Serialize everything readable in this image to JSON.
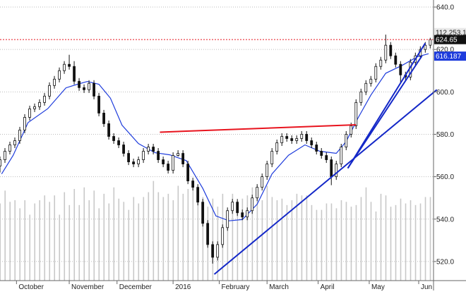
{
  "chart_data": {
    "type": "candlestick",
    "y_axis": {
      "ticks": [
        "640.0",
        "620.0",
        "600.0",
        "580.0",
        "560.0",
        "540.0",
        "520.0"
      ],
      "tick_values": [
        640,
        620,
        600,
        580,
        560,
        540,
        520
      ],
      "range": [
        511,
        642
      ],
      "position": "right",
      "grid": true
    },
    "x_axis": {
      "labels": [
        "October",
        "November",
        "December",
        "2016",
        "February",
        "March",
        "April",
        "May",
        "Jun"
      ],
      "label_dates": [
        "2015-10-01",
        "2015-11-02",
        "2015-12-01",
        "2016-01-04",
        "2016-02-01",
        "2016-03-01",
        "2016-04-01",
        "2016-05-02",
        "2016-06-01"
      ],
      "range": [
        "2015-09-21",
        "2016-06-10"
      ]
    },
    "value_tags": {
      "volume": {
        "text": "112,253,16",
        "color": "#e8e8e8",
        "text_color": "#222222"
      },
      "price": {
        "text": "624.65",
        "value": 624.65,
        "color": "#111111",
        "text_color": "#ffffff"
      },
      "moving_average": {
        "text": "616.187",
        "value": 616.187,
        "color": "#1e3cdc",
        "text_color": "#ffffff"
      }
    },
    "resistance_line_value": 624.65,
    "colors": {
      "candle": "#111111",
      "moving_average": "#1e3cdc",
      "trendline": "#1428c8",
      "resistance": "#e8141e",
      "volume": "#c8c8c8",
      "grid": "#bbbbbb"
    },
    "moving_average": {
      "dates": [
        "2015-09-22",
        "2015-09-29",
        "2015-10-08",
        "2015-10-20",
        "2015-10-31",
        "2015-11-07",
        "2015-11-13",
        "2015-11-20",
        "2015-11-27",
        "2015-12-04",
        "2015-12-14",
        "2015-12-24",
        "2016-01-02",
        "2016-01-12",
        "2016-01-22",
        "2016-01-30",
        "2016-02-07",
        "2016-02-15",
        "2016-02-24",
        "2016-03-04",
        "2016-03-14",
        "2016-03-24",
        "2016-04-02",
        "2016-04-12",
        "2016-04-18",
        "2016-04-25",
        "2016-05-03",
        "2016-05-12",
        "2016-05-22",
        "2016-05-31",
        "2016-06-07"
      ],
      "values": [
        561.3,
        570.1,
        585.5,
        592.1,
        601.9,
        603.6,
        604.9,
        603.6,
        597.0,
        584.3,
        575.6,
        571.3,
        570.3,
        567.6,
        554.5,
        541.5,
        539.2,
        539.8,
        547.0,
        561.3,
        570.1,
        575.0,
        572.0,
        571.0,
        576.6,
        587.4,
        598.5,
        608.8,
        612.5,
        616.5,
        618.0
      ]
    },
    "candles": {
      "dates": [
        "2015-09-21",
        "2015-09-24",
        "2015-09-27",
        "2015-09-30",
        "2015-10-03",
        "2015-10-06",
        "2015-10-09",
        "2015-10-12",
        "2015-10-15",
        "2015-10-18",
        "2015-10-21",
        "2015-10-24",
        "2015-10-27",
        "2015-10-30",
        "2015-11-02",
        "2015-11-05",
        "2015-11-08",
        "2015-11-11",
        "2015-11-14",
        "2015-11-17",
        "2015-11-20",
        "2015-11-23",
        "2015-11-26",
        "2015-11-29",
        "2015-12-02",
        "2015-12-05",
        "2015-12-08",
        "2015-12-11",
        "2015-12-14",
        "2015-12-17",
        "2015-12-20",
        "2015-12-23",
        "2015-12-26",
        "2015-12-29",
        "2016-01-01",
        "2016-01-04",
        "2016-01-07",
        "2016-01-10",
        "2016-01-13",
        "2016-01-16",
        "2016-01-19",
        "2016-01-22",
        "2016-01-25",
        "2016-01-28",
        "2016-01-31",
        "2016-02-03",
        "2016-02-06",
        "2016-02-09",
        "2016-02-12",
        "2016-02-15",
        "2016-02-18",
        "2016-02-21",
        "2016-02-24",
        "2016-02-27",
        "2016-03-01",
        "2016-03-04",
        "2016-03-07",
        "2016-03-10",
        "2016-03-13",
        "2016-03-16",
        "2016-03-19",
        "2016-03-22",
        "2016-03-25",
        "2016-03-28",
        "2016-03-31",
        "2016-04-03",
        "2016-04-06",
        "2016-04-09",
        "2016-04-12",
        "2016-04-15",
        "2016-04-18",
        "2016-04-21",
        "2016-04-24",
        "2016-04-27",
        "2016-04-30",
        "2016-05-03",
        "2016-05-06",
        "2016-05-09",
        "2016-05-12",
        "2016-05-15",
        "2016-05-18",
        "2016-05-21",
        "2016-05-24",
        "2016-05-27",
        "2016-05-30",
        "2016-06-02",
        "2016-06-05",
        "2016-06-08"
      ],
      "open": [
        565.0,
        568.0,
        572.0,
        575.0,
        577.0,
        582.0,
        588.0,
        592.0,
        593.0,
        595.0,
        598.0,
        603.0,
        606.0,
        610.0,
        613.0,
        612.0,
        605.0,
        602.0,
        601.0,
        604.0,
        598.0,
        590.0,
        585.0,
        579.0,
        577.0,
        575.0,
        571.0,
        567.0,
        566.0,
        568.0,
        572.0,
        574.0,
        572.0,
        568.0,
        566.0,
        563.0,
        570.0,
        571.0,
        566.0,
        558.0,
        555.0,
        548.0,
        538.0,
        528.0,
        522.0,
        528.0,
        536.0,
        544.0,
        548.0,
        543.0,
        541.0,
        544.0,
        550.0,
        555.0,
        560.0,
        566.0,
        572.0,
        576.0,
        579.0,
        578.0,
        577.0,
        578.0,
        580.0,
        577.0,
        575.0,
        572.0,
        570.0,
        568.0,
        560.0,
        566.0,
        574.0,
        580.0,
        584.0,
        595.0,
        600.0,
        604.0,
        606.0,
        612.0,
        615.0,
        622.0,
        617.0,
        613.0,
        608.0,
        607.0,
        614.0,
        617.0,
        620.0,
        622.0
      ],
      "close": [
        568.0,
        572.0,
        575.0,
        577.0,
        582.0,
        588.0,
        592.0,
        593.0,
        595.0,
        598.0,
        603.0,
        606.0,
        610.0,
        613.0,
        612.0,
        605.0,
        602.0,
        601.0,
        604.0,
        598.0,
        590.0,
        585.0,
        579.0,
        577.0,
        575.0,
        571.0,
        567.0,
        566.0,
        568.0,
        572.0,
        574.0,
        572.0,
        568.0,
        566.0,
        563.0,
        570.0,
        571.0,
        566.0,
        558.0,
        555.0,
        548.0,
        538.0,
        528.0,
        522.0,
        528.0,
        536.0,
        544.0,
        548.0,
        543.0,
        541.0,
        544.0,
        550.0,
        555.0,
        560.0,
        566.0,
        572.0,
        576.0,
        579.0,
        578.0,
        577.0,
        578.0,
        580.0,
        577.0,
        575.0,
        572.0,
        570.0,
        568.0,
        560.0,
        566.0,
        574.0,
        580.0,
        584.0,
        595.0,
        600.0,
        604.0,
        606.0,
        612.0,
        615.0,
        622.0,
        617.0,
        613.0,
        608.0,
        607.0,
        614.0,
        617.0,
        620.0,
        622.0,
        624.65
      ],
      "high": [
        569.5,
        573.5,
        576.5,
        578.5,
        583.5,
        589.5,
        593.5,
        594.5,
        596.5,
        599.5,
        604.5,
        607.5,
        611.5,
        614.5,
        617.5,
        614.5,
        606.5,
        603.5,
        605.5,
        605.5,
        599.5,
        591.5,
        586.5,
        580.5,
        578.5,
        576.5,
        572.5,
        568.5,
        569.5,
        573.5,
        575.5,
        575.5,
        573.5,
        569.5,
        567.5,
        571.5,
        572.5,
        572.5,
        567.5,
        559.5,
        556.5,
        549.5,
        539.5,
        529.5,
        529.5,
        537.5,
        545.5,
        549.5,
        549.5,
        544.5,
        545.5,
        551.5,
        556.5,
        561.5,
        567.5,
        573.5,
        577.5,
        580.5,
        580.5,
        579.5,
        579.5,
        581.5,
        581.5,
        578.5,
        576.5,
        573.5,
        571.5,
        569.5,
        567.5,
        575.5,
        581.5,
        585.5,
        596.5,
        601.5,
        605.5,
        607.5,
        613.5,
        616.5,
        627.0,
        623.5,
        618.5,
        614.5,
        609.5,
        615.5,
        618.5,
        621.5,
        623.5,
        625.5
      ],
      "low": [
        562.0,
        566.5,
        570.5,
        573.5,
        575.5,
        580.5,
        586.5,
        590.5,
        591.5,
        593.5,
        596.5,
        601.5,
        604.5,
        608.5,
        610.5,
        603.5,
        600.5,
        599.5,
        599.5,
        596.5,
        588.5,
        583.5,
        577.5,
        575.5,
        573.5,
        569.5,
        565.5,
        564.5,
        564.5,
        566.5,
        570.5,
        570.5,
        566.5,
        564.5,
        561.5,
        561.5,
        569.5,
        564.5,
        556.5,
        553.5,
        546.5,
        536.5,
        526.5,
        519.0,
        520.5,
        526.5,
        534.5,
        542.5,
        541.5,
        539.5,
        539.5,
        542.5,
        548.5,
        553.5,
        558.5,
        564.5,
        570.5,
        574.5,
        576.5,
        575.5,
        575.5,
        576.5,
        575.5,
        573.5,
        570.5,
        568.5,
        566.5,
        556.0,
        558.5,
        564.5,
        572.5,
        578.5,
        582.5,
        593.5,
        598.5,
        602.5,
        604.5,
        610.5,
        613.5,
        615.5,
        611.5,
        604.0,
        605.5,
        605.5,
        612.5,
        615.5,
        618.5,
        620.5
      ]
    },
    "volume_relative": [
      0.48,
      0.56,
      0.49,
      0.5,
      0.45,
      0.5,
      0.41,
      0.48,
      0.5,
      0.53,
      0.49,
      0.53,
      0.41,
      0.55,
      0.47,
      0.57,
      0.47,
      0.58,
      0.5,
      0.56,
      0.45,
      0.54,
      0.48,
      0.58,
      0.51,
      0.49,
      0.44,
      0.52,
      0.48,
      0.52,
      0.55,
      0.62,
      0.55,
      0.52,
      0.54,
      0.5,
      0.59,
      0.54,
      0.57,
      0.6,
      0.56,
      0.52,
      0.46,
      0.51,
      0.46,
      0.54,
      0.42,
      0.54,
      0.5,
      0.51,
      0.53,
      0.58,
      0.58,
      0.5,
      0.59,
      0.52,
      0.5,
      0.51,
      0.47,
      0.5,
      0.54,
      0.53,
      0.53,
      0.47,
      0.44,
      0.44,
      0.48,
      0.48,
      0.45,
      0.5,
      0.49,
      0.46,
      0.47,
      0.52,
      0.58,
      0.49,
      0.43,
      0.54,
      0.53,
      0.46,
      0.47,
      0.51,
      0.48,
      0.5,
      0.47,
      0.48,
      0.52,
      0.52
    ],
    "trendlines": [
      {
        "from": {
          "date": "2016-01-29",
          "value": 514
        },
        "to": {
          "date": "2016-06-12",
          "value": 601
        }
      },
      {
        "from": {
          "date": "2016-04-19",
          "value": 564
        },
        "to": {
          "date": "2016-06-05",
          "value": 623
        }
      },
      {
        "from": {
          "date": "2016-04-19",
          "value": 564
        },
        "to": {
          "date": "2016-06-03",
          "value": 617
        }
      }
    ],
    "resistance_segment": {
      "from": {
        "date": "2015-12-27",
        "value": 581
      },
      "to": {
        "date": "2016-04-24",
        "value": 584.5
      }
    }
  }
}
